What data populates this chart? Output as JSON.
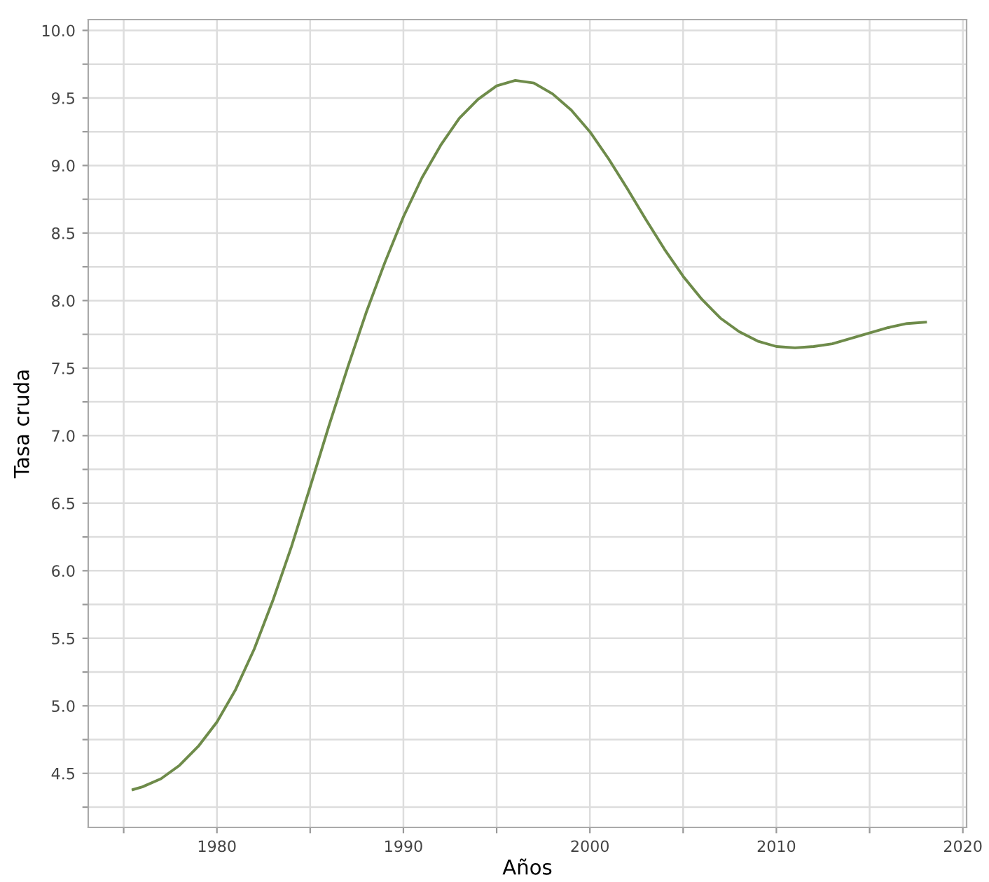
{
  "chart_data": {
    "type": "line",
    "xlabel": "Años",
    "ylabel": "Tasa cruda",
    "x": [
      1975.5,
      1976,
      1977,
      1978,
      1979,
      1980,
      1981,
      1982,
      1983,
      1984,
      1985,
      1986,
      1987,
      1988,
      1989,
      1990,
      1991,
      1992,
      1993,
      1994,
      1995,
      1996,
      1997,
      1998,
      1999,
      2000,
      2001,
      2002,
      2003,
      2004,
      2005,
      2006,
      2007,
      2008,
      2009,
      2010,
      2011,
      2012,
      2013,
      2014,
      2015,
      2016,
      2017,
      2018
    ],
    "series": [
      {
        "color": "#6e8b4a",
        "values": [
          4.38,
          4.4,
          4.46,
          4.56,
          4.7,
          4.88,
          5.12,
          5.42,
          5.78,
          6.18,
          6.62,
          7.07,
          7.5,
          7.91,
          8.28,
          8.62,
          8.91,
          9.15,
          9.35,
          9.49,
          9.59,
          9.63,
          9.61,
          9.53,
          9.41,
          9.25,
          9.05,
          8.83,
          8.6,
          8.38,
          8.18,
          8.01,
          7.87,
          7.77,
          7.7,
          7.66,
          7.65,
          7.66,
          7.68,
          7.72,
          7.76,
          7.8,
          7.83,
          7.84
        ]
      }
    ],
    "xlim": [
      1973.1,
      2020.2
    ],
    "ylim": [
      4.1,
      10.08
    ],
    "xticks": [
      {
        "value": 1975,
        "label": null
      },
      1980,
      {
        "value": 1985,
        "label": null
      },
      1990,
      {
        "value": 1995,
        "label": null
      },
      2000,
      {
        "value": 2005,
        "label": null
      },
      2010,
      {
        "value": 2015,
        "label": null
      },
      2020
    ],
    "yticks": [
      {
        "value": 4.25,
        "label": null
      },
      4.5,
      {
        "value": 4.75,
        "label": null
      },
      {
        "value": 5,
        "label": "5.0"
      },
      {
        "value": 5.25,
        "label": null
      },
      5.5,
      {
        "value": 5.75,
        "label": null
      },
      {
        "value": 6,
        "label": "6.0"
      },
      {
        "value": 6.25,
        "label": null
      },
      6.5,
      {
        "value": 6.75,
        "label": null
      },
      {
        "value": 7,
        "label": "7.0"
      },
      {
        "value": 7.25,
        "label": null
      },
      7.5,
      {
        "value": 7.75,
        "label": null
      },
      {
        "value": 8,
        "label": "8.0"
      },
      {
        "value": 8.25,
        "label": null
      },
      8.5,
      {
        "value": 8.75,
        "label": null
      },
      {
        "value": 9,
        "label": "9.0"
      },
      {
        "value": 9.25,
        "label": null
      },
      9.5,
      {
        "value": 9.75,
        "label": null
      },
      {
        "value": 10,
        "label": "10.0"
      }
    ],
    "grid": true,
    "marker": "none",
    "line_style": "solid"
  }
}
